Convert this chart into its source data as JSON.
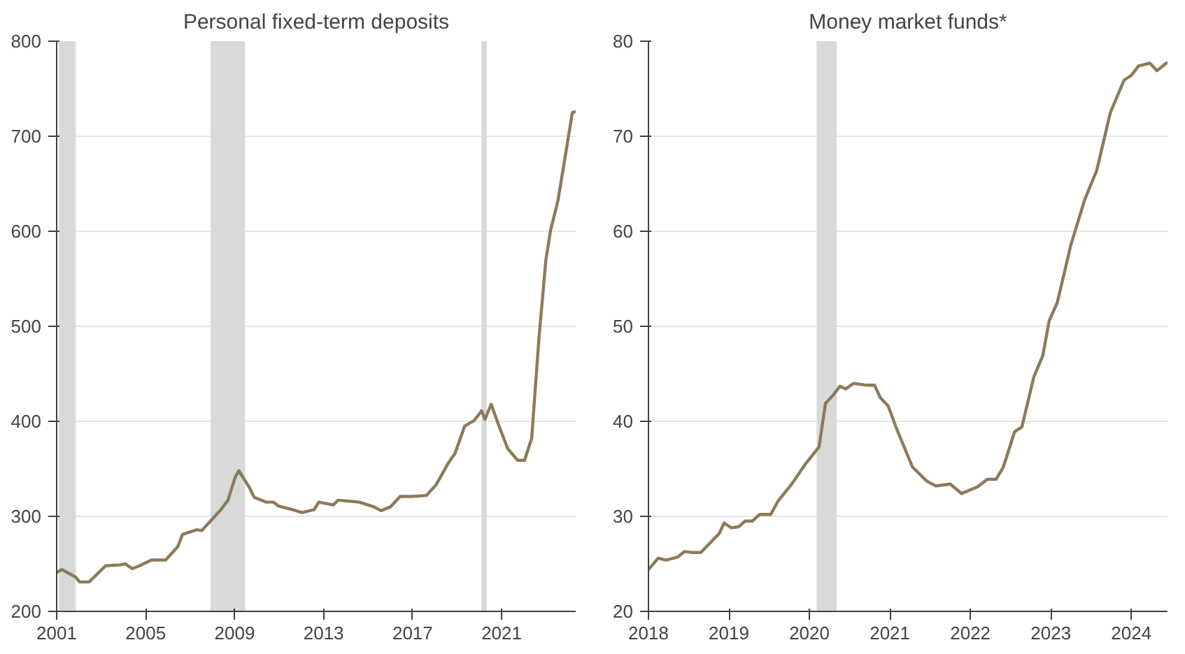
{
  "chart_data": [
    {
      "type": "line",
      "title": "Personal fixed-term deposits",
      "xlim": [
        2001,
        2024.33
      ],
      "xticks": [
        2001,
        2005,
        2009,
        2013,
        2017,
        2021
      ],
      "ylim": [
        200,
        800
      ],
      "yticks": [
        200,
        300,
        400,
        500,
        600,
        700,
        800
      ],
      "grid": "y",
      "bands": [
        {
          "axis": "x",
          "from": 2001.1,
          "to": 2001.86,
          "color": "#d9d9d9"
        },
        {
          "axis": "x",
          "from": 2007.92,
          "to": 2009.47,
          "color": "#d9d9d9"
        },
        {
          "axis": "x",
          "from": 2020.1,
          "to": 2020.33,
          "color": "#d9d9d9"
        }
      ],
      "series": [
        {
          "color": "#8c7a5b",
          "x": [
            2001.0,
            2001.24,
            2001.86,
            2002.03,
            2002.46,
            2003.2,
            2003.86,
            2004.08,
            2004.4,
            2004.72,
            2005.26,
            2005.9,
            2006.44,
            2006.66,
            2007.3,
            2007.52,
            2007.95,
            2008.38,
            2008.7,
            2009.02,
            2009.19,
            2009.67,
            2009.88,
            2010.42,
            2010.74,
            2010.96,
            2011.6,
            2012.03,
            2012.57,
            2012.78,
            2013.43,
            2013.65,
            2014.6,
            2015.26,
            2015.58,
            2016.0,
            2016.44,
            2016.98,
            2017.62,
            2018.05,
            2018.6,
            2018.9,
            2019.34,
            2019.77,
            2020.1,
            2020.25,
            2020.53,
            2020.85,
            2021.28,
            2021.72,
            2022.03,
            2022.35,
            2022.68,
            2022.99,
            2023.2,
            2023.53,
            2023.86,
            2024.18,
            2024.33
          ],
          "values": [
            241,
            244,
            236,
            231,
            231,
            248,
            249,
            250,
            245,
            248,
            254,
            254,
            268,
            281,
            286,
            285,
            296,
            307,
            317,
            341,
            348,
            330,
            320,
            315,
            315,
            311,
            307,
            304,
            307,
            315,
            312,
            317,
            315,
            310,
            306,
            310,
            321,
            321,
            322,
            333,
            356,
            366,
            395,
            401,
            411,
            402,
            418,
            397,
            371,
            359,
            359,
            382,
            488,
            570,
            601,
            632,
            679,
            725,
            726
          ]
        }
      ]
    },
    {
      "type": "line",
      "title": "Money market funds*",
      "xlim": [
        2018,
        2024.45
      ],
      "xticks": [
        2018,
        2019,
        2020,
        2021,
        2022,
        2023,
        2024
      ],
      "ylim": [
        20,
        80
      ],
      "yticks": [
        20,
        30,
        40,
        50,
        60,
        70,
        80
      ],
      "grid": "y",
      "bands": [
        {
          "axis": "x",
          "from": 2020.09,
          "to": 2020.34,
          "color": "#d9d9d9"
        }
      ],
      "series": [
        {
          "color": "#8c7a5b",
          "x": [
            2018.0,
            2018.12,
            2018.22,
            2018.36,
            2018.45,
            2018.54,
            2018.65,
            2018.8,
            2018.88,
            2018.94,
            2019.03,
            2019.12,
            2019.2,
            2019.29,
            2019.38,
            2019.52,
            2019.61,
            2019.78,
            2019.95,
            2020.12,
            2020.2,
            2020.3,
            2020.38,
            2020.45,
            2020.55,
            2020.71,
            2020.81,
            2020.88,
            2020.98,
            2021.08,
            2021.28,
            2021.46,
            2021.57,
            2021.75,
            2021.89,
            2022.09,
            2022.21,
            2022.32,
            2022.41,
            2022.55,
            2022.64,
            2022.79,
            2022.9,
            2022.98,
            2023.08,
            2023.25,
            2023.42,
            2023.57,
            2023.74,
            2023.91,
            2024.0,
            2024.09,
            2024.23,
            2024.32,
            2024.45
          ],
          "values": [
            24.4,
            25.6,
            25.4,
            25.7,
            26.3,
            26.2,
            26.2,
            27.5,
            28.2,
            29.3,
            28.8,
            28.9,
            29.5,
            29.5,
            30.2,
            30.2,
            31.6,
            33.4,
            35.5,
            37.3,
            41.9,
            42.8,
            43.7,
            43.4,
            44.0,
            43.8,
            43.8,
            42.5,
            41.6,
            39.3,
            35.2,
            33.7,
            33.2,
            33.4,
            32.4,
            33.1,
            33.9,
            33.9,
            35.2,
            38.9,
            39.4,
            44.7,
            46.9,
            50.6,
            52.5,
            58.6,
            63.3,
            66.4,
            72.5,
            75.9,
            76.4,
            77.4,
            77.7,
            76.9,
            77.8
          ]
        }
      ]
    }
  ]
}
